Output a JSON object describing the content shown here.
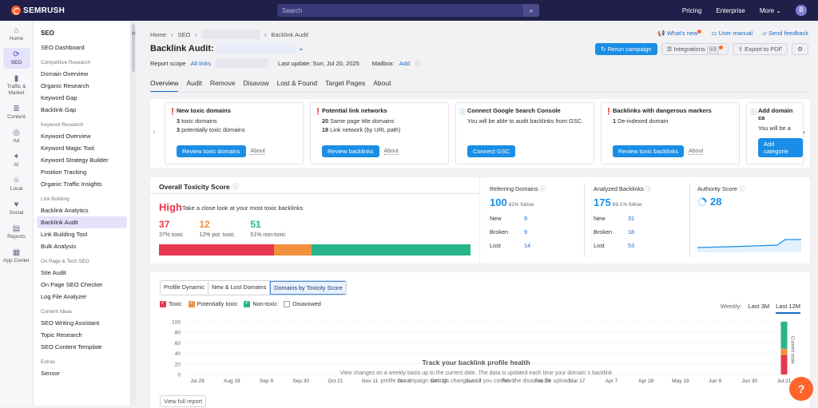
{
  "topbar": {
    "brand": "SEMRUSH",
    "search_placeholder": "Search",
    "pricing": "Pricing",
    "enterprise": "Enterprise",
    "more": "More",
    "avatar": "B"
  },
  "iconbar": [
    {
      "label": "Home",
      "icon": "home-icon",
      "glyph": "⌂"
    },
    {
      "label": "SEO",
      "icon": "seo-icon",
      "glyph": "⟳"
    },
    {
      "label": "Traffic & Market",
      "icon": "traffic-icon",
      "glyph": "▮"
    },
    {
      "label": "Content",
      "icon": "content-icon",
      "glyph": "≣"
    },
    {
      "label": "Ad",
      "icon": "ad-icon",
      "glyph": "◎"
    },
    {
      "label": "AI",
      "icon": "ai-icon",
      "glyph": "✦"
    },
    {
      "label": "Local",
      "icon": "local-icon",
      "glyph": "⌾"
    },
    {
      "label": "Social",
      "icon": "social-icon",
      "glyph": "♥"
    },
    {
      "label": "Reports",
      "icon": "reports-icon",
      "glyph": "▤"
    },
    {
      "label": "App Center",
      "icon": "app-center-icon",
      "glyph": "▦"
    }
  ],
  "sidebar": {
    "title": "SEO",
    "dashboard": "SEO Dashboard",
    "groups": [
      {
        "name": "Competitive Research",
        "items": [
          "Domain Overview",
          "Organic Research",
          "Keyword Gap",
          "Backlink Gap"
        ]
      },
      {
        "name": "Keyword Research",
        "items": [
          "Keyword Overview",
          "Keyword Magic Tool",
          "Keyword Strategy Builder",
          "Position Tracking",
          "Organic Traffic Insights"
        ]
      },
      {
        "name": "Link Building",
        "items": [
          "Backlink Analytics",
          "Backlink Audit",
          "Link Building Tool",
          "Bulk Analysis"
        ]
      },
      {
        "name": "On Page & Tech SEO",
        "items": [
          "Site Audit",
          "On Page SEO Checker",
          "Log File Analyzer"
        ]
      },
      {
        "name": "Content Ideas",
        "items": [
          "SEO Writing Assistant",
          "Topic Research",
          "SEO Content Template"
        ]
      },
      {
        "name": "Extras",
        "items": [
          "Sensor"
        ]
      }
    ]
  },
  "crumb": {
    "home": "Home",
    "seo": "SEO",
    "current": "Backlink Audit"
  },
  "header": {
    "title": "Backlink Audit:",
    "report_scope": "Report scope",
    "all_links": "All links",
    "last_update": "Last update: Sun, Jul 20, 2025",
    "mailbox": "Mailbox:",
    "add": "Add"
  },
  "toplinks": {
    "whats_new": "What's new",
    "user_manual": "User manual",
    "send_feedback": "Send feedback"
  },
  "actions": {
    "rerun": "Rerun campaign",
    "integrations": "Integrations",
    "integrations_count": "0/3",
    "export": "Export to PDF"
  },
  "tabs": [
    "Overview",
    "Audit",
    "Remove",
    "Disavow",
    "Lost & Found",
    "Target Pages",
    "About"
  ],
  "cards": [
    {
      "title": "New toxic domains",
      "lines": [
        {
          "n": "3",
          "t": "toxic domains"
        },
        {
          "n": "3",
          "t": "potentially toxic domains"
        }
      ],
      "button": "Review toxic domains",
      "about": "About",
      "icon": "!"
    },
    {
      "title": "Potential link networks",
      "lines": [
        {
          "n": "20",
          "t": "Same page title domains"
        },
        {
          "n": "18",
          "t": "Link network (by URL path)"
        }
      ],
      "button": "Review backlinks",
      "about": "About",
      "icon": "!"
    },
    {
      "title": "Connect Google Search Console",
      "lines": [
        {
          "n": "",
          "t": "You will be able to audit backlinks from GSC."
        }
      ],
      "button": "Connect GSC",
      "about": "",
      "icon": "i"
    },
    {
      "title": "Backlinks with dangerous markers",
      "lines": [
        {
          "n": "1",
          "t": "De-indexed domain"
        }
      ],
      "button": "Review toxic backlinks",
      "about": "About",
      "icon": "!"
    },
    {
      "title": "Add domain ca",
      "lines": [
        {
          "n": "",
          "t": "You will be a"
        }
      ],
      "button": "Add categorie",
      "about": "",
      "icon": "i"
    }
  ],
  "toxicity": {
    "title": "Overall Toxicity Score",
    "level": "High",
    "level_text": "Take a close look at your most toxic backlinks",
    "toxic": "37",
    "toxic_label": "37% toxic",
    "pot": "12",
    "pot_label": "12% pot. toxic",
    "non": "51",
    "non_label": "51% non-toxic",
    "colors": {
      "toxic": "#e8384f",
      "pot": "#f2913d",
      "non": "#26b58a"
    }
  },
  "stats": {
    "ref": {
      "label": "Referring Domains",
      "value": "100",
      "sub": "81% follow",
      "new": "9",
      "broken": "9",
      "lost": "14"
    },
    "analyzed": {
      "label": "Analyzed Backlinks",
      "value": "175",
      "sub": "69.1% follow",
      "new": "31",
      "broken": "18",
      "lost": "53"
    },
    "authority": {
      "label": "Authority Score",
      "value": "28"
    },
    "row_labels": {
      "new": "New",
      "broken": "Broken",
      "lost": "Lost"
    }
  },
  "chart": {
    "tabs": [
      "Profile Dynamic",
      "New & Lost Domains",
      "Domains by Toxicity Score"
    ],
    "legend": [
      "Toxic",
      "Potentially toxic",
      "Non-toxic",
      "Disavowed"
    ],
    "weekly": "Weekly:",
    "last3m": "Last 3M",
    "last12m": "Last 12M",
    "note_title": "Track your backlink profile health",
    "note_desc": "View changes on a weekly basis up to the current date. The data is updated each time your domain`s backlink profile or campaign settings change, or if you confirm the disavow file upload.",
    "current_state": "Current state",
    "view_full": "View full report",
    "help": "?"
  },
  "chart_data": {
    "type": "bar",
    "title": "Domains by Toxicity Score",
    "categories": [
      "Jul 29",
      "Aug 19",
      "Sep 9",
      "Sep 30",
      "Oct 21",
      "Nov 11",
      "Dec 2",
      "Dec 23",
      "Jan 13",
      "Feb 3",
      "Feb 24",
      "Mar 17",
      "Apr 7",
      "Apr 28",
      "May 19",
      "Jun 9",
      "Jun 30",
      "Jul 21"
    ],
    "ylim": [
      0,
      100
    ],
    "yticks": [
      "100",
      "80",
      "60",
      "40",
      "20",
      "0"
    ],
    "series": [
      {
        "name": "Toxic",
        "values": [
          0,
          0,
          0,
          0,
          0,
          0,
          0,
          0,
          0,
          0,
          0,
          0,
          0,
          0,
          0,
          0,
          0,
          37
        ]
      },
      {
        "name": "Potentially toxic",
        "values": [
          0,
          0,
          0,
          0,
          0,
          0,
          0,
          0,
          0,
          0,
          0,
          0,
          0,
          0,
          0,
          0,
          0,
          12
        ]
      },
      {
        "name": "Non-toxic",
        "values": [
          0,
          0,
          0,
          0,
          0,
          0,
          0,
          0,
          0,
          0,
          0,
          0,
          0,
          0,
          0,
          0,
          0,
          51
        ]
      }
    ]
  }
}
